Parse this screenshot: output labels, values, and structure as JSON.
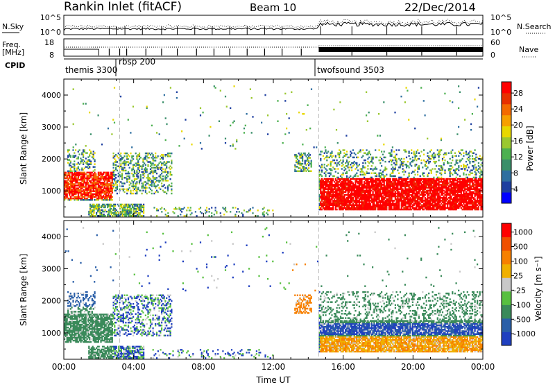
{
  "header": {
    "station": "Rankin Inlet (fitACF)",
    "beam": "Beam 10",
    "date": "22/Dec/2014"
  },
  "noise_panel": {
    "left_label": "N.Sky",
    "right_label": "N.Search",
    "left_ticks": [
      "10^5",
      "10^0"
    ],
    "right_ticks": [
      "10^5",
      "10^0"
    ]
  },
  "freq_panel": {
    "left_label_1": "Freq.",
    "left_label_2": "[MHz]",
    "right_label": "Nave",
    "left_ticks": [
      "18",
      "8"
    ],
    "right_ticks": [
      "60",
      "0"
    ]
  },
  "cpid": {
    "label": "CPID",
    "entries": [
      {
        "name": "themis 3300",
        "start_hour": 0
      },
      {
        "name": "rbsp 200",
        "start_hour": 3.2
      },
      {
        "name": "twofsound 3503",
        "start_hour": 14.6
      }
    ]
  },
  "chart_data": [
    {
      "type": "heatmap",
      "name": "Power",
      "ylabel": "Slant Range [km]",
      "xlim_hours": [
        0,
        24
      ],
      "ylim": [
        180,
        4500
      ],
      "y_ticks": [
        "1000",
        "2000",
        "3000",
        "4000"
      ],
      "colorbar_label": "Power [dB]",
      "colorbar_ticks": [
        "28",
        "24",
        "20",
        "16",
        "12",
        "8",
        "4"
      ],
      "colors": [
        "#0000ff",
        "#1e3fa0",
        "#2f6fa0",
        "#3a8f6a",
        "#4cb050",
        "#9ac830",
        "#e8d800",
        "#f7a000",
        "#f46a00",
        "#e83000",
        "#ff0000"
      ]
    },
    {
      "type": "heatmap",
      "name": "Velocity",
      "ylabel": "Slant Range [km]",
      "xlabel": "Time UT",
      "xlim_hours": [
        0,
        24
      ],
      "ylim": [
        180,
        4500
      ],
      "y_ticks": [
        "1000",
        "2000",
        "3000",
        "4000"
      ],
      "x_ticks": [
        "00:00",
        "04:00",
        "08:00",
        "12:00",
        "16:00",
        "20:00",
        "00:00"
      ],
      "colorbar_label": "Velocity [m s⁻¹]",
      "colorbar_ticks": [
        "1000",
        "500",
        "100",
        "25",
        "-25",
        "-100",
        "-500",
        "-1000"
      ],
      "colors": [
        "#2040c0",
        "#2a5fa8",
        "#3a8a5a",
        "#58c040",
        "#c8c8c8",
        "#f0b000",
        "#f78000",
        "#f05000",
        "#ff0000"
      ]
    }
  ]
}
